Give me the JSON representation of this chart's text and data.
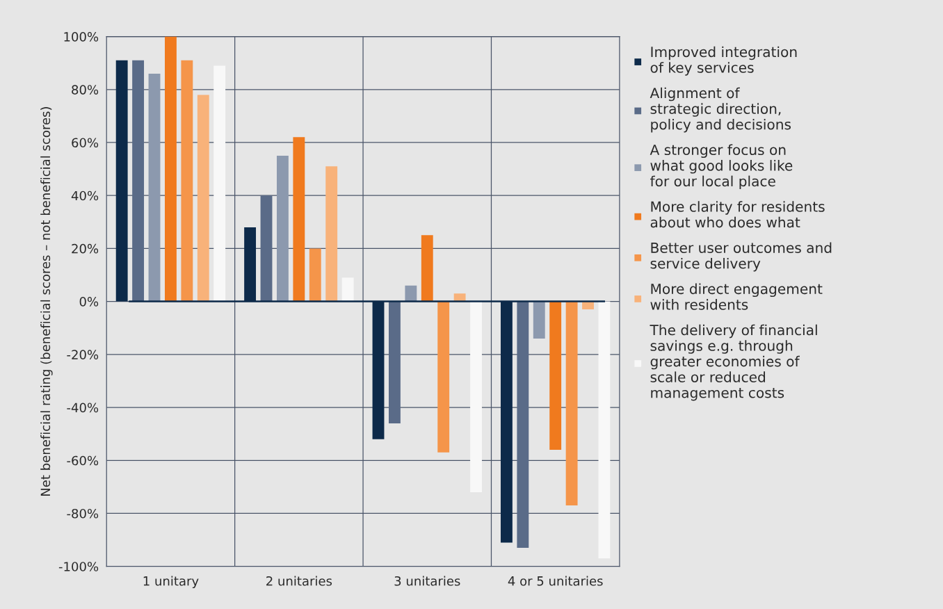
{
  "chart_data": {
    "type": "bar",
    "ylabel": "Net beneficial rating (beneficial scores – not beneficial scores)",
    "categories": [
      "1 unitary",
      "2 unitaries",
      "3 unitaries",
      "4 or 5 unitaries"
    ],
    "series": [
      {
        "name": "Improved integration\nof key services",
        "color": "#0d2a4a",
        "values": [
          91,
          28,
          -52,
          -91
        ]
      },
      {
        "name": "Alignment of\nstrategic direction,\npolicy and decisions",
        "color": "#5a6b88",
        "values": [
          91,
          40,
          -46,
          -93
        ]
      },
      {
        "name": "A stronger focus on\nwhat good looks like\nfor our local place",
        "color": "#8c99ae",
        "values": [
          86,
          55,
          6,
          -14
        ]
      },
      {
        "name": "More clarity for residents\nabout who does what",
        "color": "#f07a1e",
        "values": [
          100,
          62,
          25,
          -56
        ]
      },
      {
        "name": "Better user outcomes and\nservice delivery",
        "color": "#f5954a",
        "values": [
          91,
          20,
          -57,
          -77
        ]
      },
      {
        "name": "More direct engagement\nwith residents",
        "color": "#f8b27a",
        "values": [
          78,
          51,
          3,
          -3
        ]
      },
      {
        "name": "The delivery of financial\nsavings e.g. through\ngreater economies of\nscale or reduced\nmanagement costs",
        "color": "#f8f8f8",
        "values": [
          89,
          9,
          -72,
          -97
        ]
      }
    ],
    "ylim": [
      -100,
      100
    ],
    "yticks": [
      {
        "value": -100,
        "label": "-100%"
      },
      {
        "value": -80,
        "label": "-80%"
      },
      {
        "value": -60,
        "label": "-60%"
      },
      {
        "value": -40,
        "label": "-40%"
      },
      {
        "value": -20,
        "label": "-20%"
      },
      {
        "value": 0,
        "label": "0%"
      },
      {
        "value": 20,
        "label": "20%"
      },
      {
        "value": 40,
        "label": "40%"
      },
      {
        "value": 60,
        "label": "60%"
      },
      {
        "value": 80,
        "label": "80%"
      },
      {
        "value": 100,
        "label": "100%"
      }
    ],
    "grid": true,
    "legend": "right"
  }
}
